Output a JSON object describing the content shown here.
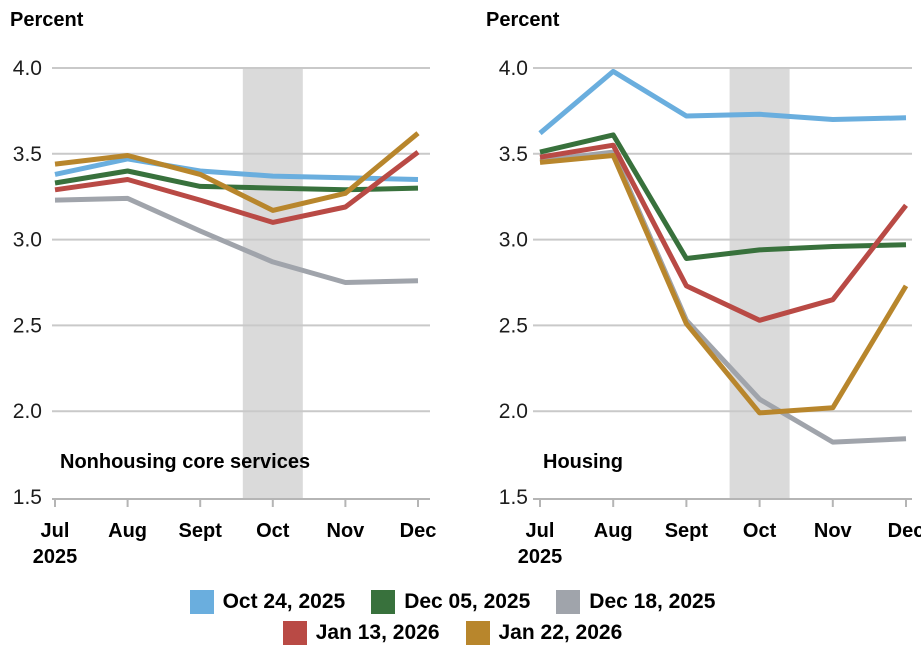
{
  "page": {
    "background": "#ffffff"
  },
  "colors": {
    "gridline": "#c9c9c9",
    "axis": "#b5b5b5",
    "shaded_band": "#dadada",
    "blue": "#6aaede",
    "green": "#38713c",
    "gray": "#a0a4ab",
    "red": "#b94a45",
    "gold": "#b8862c"
  },
  "legend": {
    "rows": [
      [
        {
          "label": "Oct 24, 2025",
          "color": "#6aaede"
        },
        {
          "label": "Dec 05, 2025",
          "color": "#38713c"
        },
        {
          "label": "Dec 18, 2025",
          "color": "#a0a4ab"
        }
      ],
      [
        {
          "label": "Jan 13, 2026",
          "color": "#b94a45"
        },
        {
          "label": "Jan 22, 2026",
          "color": "#b8862c"
        }
      ]
    ]
  },
  "chart_data": [
    {
      "type": "line",
      "title": "Nonhousing core services",
      "ylabel": "Percent",
      "xlabel": "",
      "x_tick_labels": [
        "Jul",
        "Aug",
        "Sept",
        "Oct",
        "Nov",
        "Dec"
      ],
      "x_sub_label": "2025",
      "ylim": [
        1.5,
        4.0
      ],
      "yticks": [
        4.0,
        3.5,
        3.0,
        2.5,
        2.0,
        1.5
      ],
      "grid": true,
      "legend_position": "bottom-shared",
      "shaded_band": {
        "center_month": "Oct",
        "color": "#dadada"
      },
      "series": [
        {
          "name": "Oct 24, 2025",
          "color": "#6aaede",
          "values": [
            3.38,
            3.47,
            3.4,
            3.37,
            3.36,
            3.35
          ]
        },
        {
          "name": "Dec 05, 2025",
          "color": "#38713c",
          "values": [
            3.33,
            3.4,
            3.31,
            3.3,
            3.29,
            3.3
          ]
        },
        {
          "name": "Dec 18, 2025",
          "color": "#a0a4ab",
          "values": [
            3.23,
            3.24,
            3.05,
            2.87,
            2.75,
            2.76
          ]
        },
        {
          "name": "Jan 13, 2026",
          "color": "#b94a45",
          "values": [
            3.29,
            3.35,
            3.23,
            3.1,
            3.19,
            3.51
          ]
        },
        {
          "name": "Jan 22, 2026",
          "color": "#b8862c",
          "values": [
            3.44,
            3.49,
            3.38,
            3.17,
            3.27,
            3.62
          ]
        }
      ]
    },
    {
      "type": "line",
      "title": "Housing",
      "ylabel": "Percent",
      "xlabel": "",
      "x_tick_labels": [
        "Jul",
        "Aug",
        "Sept",
        "Oct",
        "Nov",
        "Dec"
      ],
      "x_sub_label": "2025",
      "ylim": [
        1.5,
        4.0
      ],
      "yticks": [
        4.0,
        3.5,
        3.0,
        2.5,
        2.0,
        1.5
      ],
      "grid": true,
      "legend_position": "bottom-shared",
      "shaded_band": {
        "center_month": "Oct",
        "color": "#dadada"
      },
      "series": [
        {
          "name": "Oct 24, 2025",
          "color": "#6aaede",
          "values": [
            3.62,
            3.98,
            3.72,
            3.73,
            3.7,
            3.71
          ]
        },
        {
          "name": "Dec 05, 2025",
          "color": "#38713c",
          "values": [
            3.51,
            3.61,
            2.89,
            2.94,
            2.96,
            2.97
          ]
        },
        {
          "name": "Dec 18, 2025",
          "color": "#a0a4ab",
          "values": [
            3.46,
            3.51,
            2.53,
            2.07,
            1.82,
            1.84
          ]
        },
        {
          "name": "Jan 13, 2026",
          "color": "#b94a45",
          "values": [
            3.48,
            3.55,
            2.73,
            2.53,
            2.65,
            3.2
          ]
        },
        {
          "name": "Jan 22, 2026",
          "color": "#b8862c",
          "values": [
            3.45,
            3.49,
            2.51,
            1.99,
            2.02,
            2.73
          ]
        }
      ]
    }
  ]
}
